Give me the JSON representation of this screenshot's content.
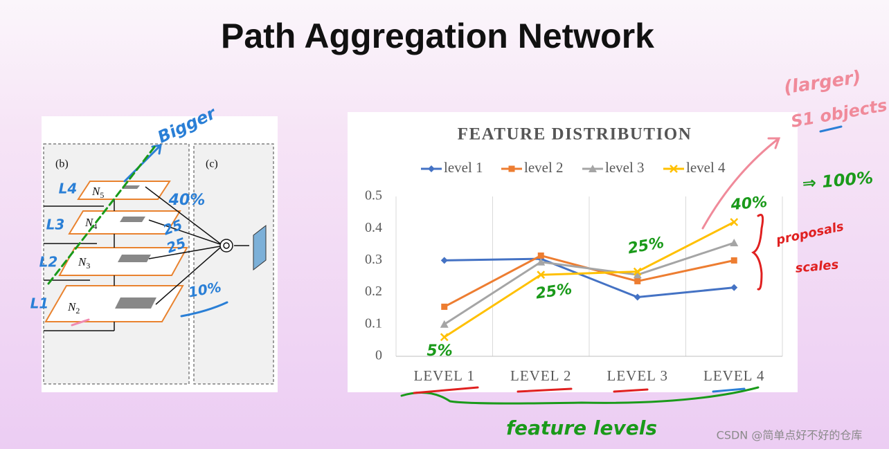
{
  "slide": {
    "title": "Path Aggregation Network",
    "watermark": "CSDN @简单点好不好的仓库",
    "annotations": [
      "Bigger",
      "L4",
      "L3",
      "L2",
      "L1",
      "40%",
      "25",
      "25",
      "10%",
      "5%",
      "25%",
      "25%",
      "40%",
      "⇒ 100%",
      "(larger)",
      "S1 objects",
      "proposals",
      "scales",
      "feature levels"
    ]
  },
  "diagram": {
    "panels": [
      "(b)",
      "(c)"
    ],
    "nodes": [
      {
        "symbol": "N",
        "sub": "5"
      },
      {
        "symbol": "N",
        "sub": "4"
      },
      {
        "symbol": "N",
        "sub": "3"
      },
      {
        "symbol": "N",
        "sub": "2"
      }
    ]
  },
  "chart_data": {
    "type": "line",
    "title": "FEATURE DISTRIBUTION",
    "categories": [
      "LEVEL 1",
      "LEVEL 2",
      "LEVEL 3",
      "LEVEL 4"
    ],
    "series": [
      {
        "name": "level 1",
        "color": "#4472c4",
        "marker": "diamond",
        "values": [
          0.3,
          0.305,
          0.185,
          0.215
        ]
      },
      {
        "name": "level 2",
        "color": "#ed7d31",
        "marker": "square",
        "values": [
          0.155,
          0.315,
          0.235,
          0.3
        ]
      },
      {
        "name": "level 3",
        "color": "#a5a5a5",
        "marker": "triangle",
        "values": [
          0.1,
          0.295,
          0.255,
          0.355
        ]
      },
      {
        "name": "level 4",
        "color": "#ffc000",
        "marker": "x",
        "values": [
          0.06,
          0.255,
          0.265,
          0.42
        ]
      }
    ],
    "ylim": [
      0,
      0.5
    ],
    "yticks": [
      0,
      0.1,
      0.2,
      0.3,
      0.4,
      0.5
    ],
    "legend": "top"
  }
}
